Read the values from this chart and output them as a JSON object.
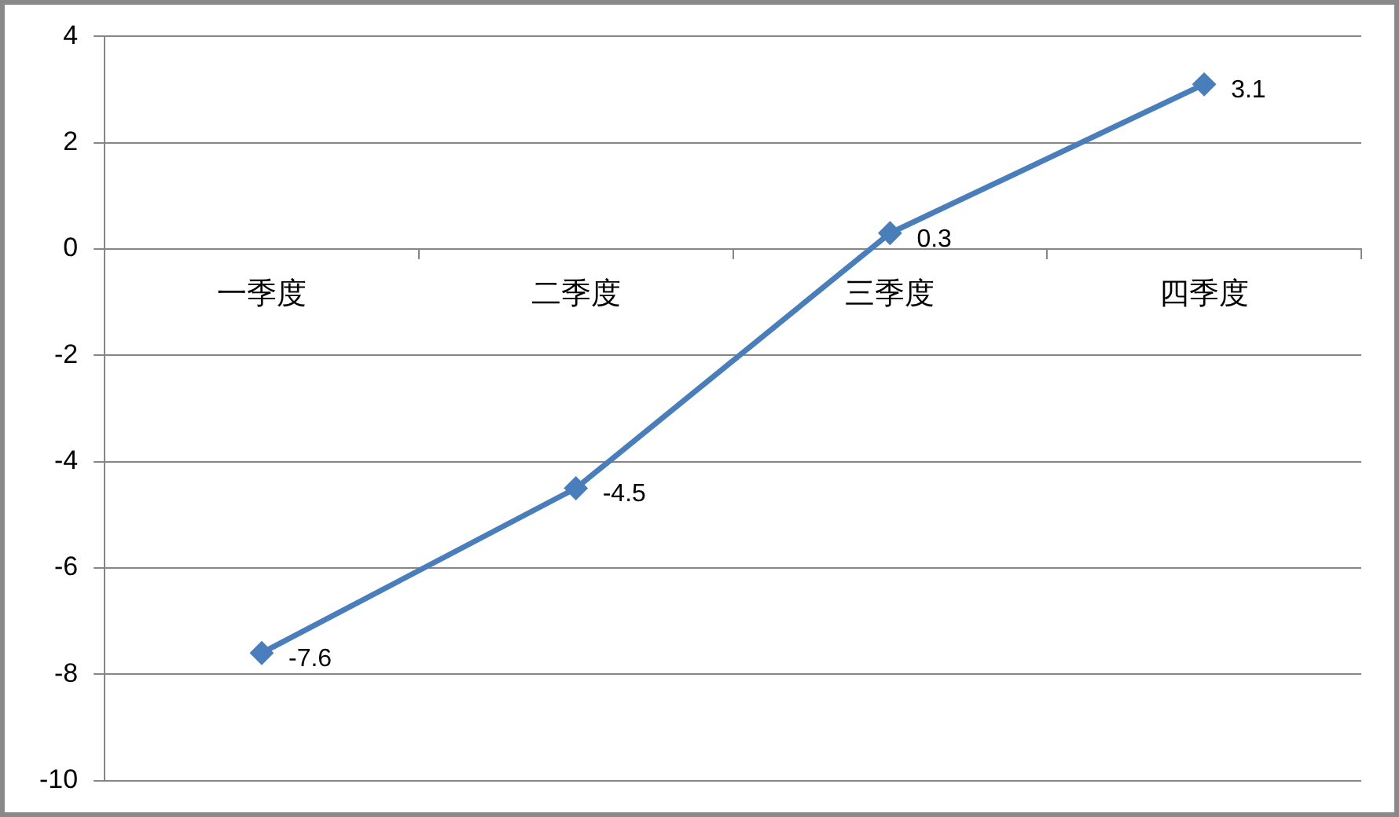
{
  "chart_data": {
    "type": "line",
    "categories": [
      "一季度",
      "二季度",
      "三季度",
      "四季度"
    ],
    "series": [
      {
        "color": "#4a7ebb",
        "values": [
          -7.6,
          -4.5,
          0.3,
          3.1
        ]
      }
    ],
    "ylim": [
      -10,
      4
    ],
    "yticks": [
      -10,
      -8,
      -6,
      -4,
      -2,
      0,
      2,
      4
    ],
    "grid": "y",
    "marker": "diamond",
    "data_labels": true
  }
}
